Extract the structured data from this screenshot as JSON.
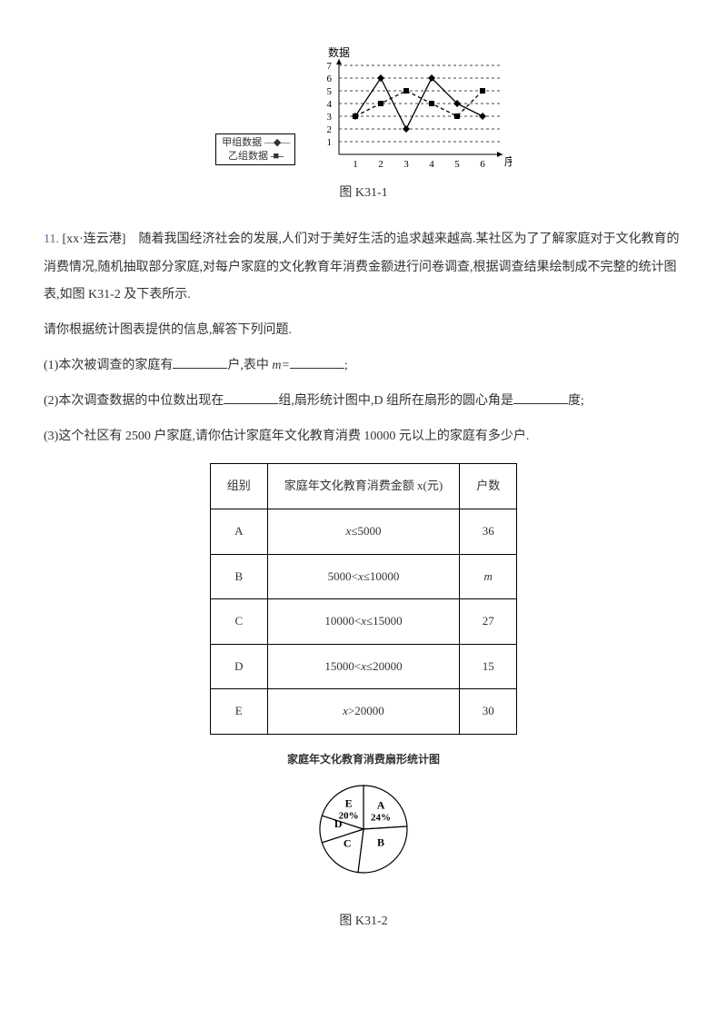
{
  "lineChart": {
    "yLabel": "数据",
    "xLabel": "序号",
    "yTicks": [
      "7",
      "6",
      "5",
      "4",
      "3",
      "2",
      "1"
    ],
    "xTicks": [
      "1",
      "2",
      "3",
      "4",
      "5",
      "6"
    ],
    "legend": {
      "seriesA": "甲组数据",
      "seriesB": "乙组数据"
    },
    "caption": "图 K31-1",
    "seriesA_values": [
      3,
      6,
      2,
      6,
      4,
      3
    ],
    "seriesB_values": [
      3,
      4,
      5,
      4,
      3,
      5
    ],
    "grid_color": "#444",
    "seriesA_marker": "diamond",
    "seriesB_marker": "square"
  },
  "question": {
    "num": "11.",
    "source": "[xx·连云港]",
    "stem": "随着我国经济社会的发展,人们对于美好生活的追求越来越高.某社区为了了解家庭对于文化教育的消费情况,随机抽取部分家庭,对每户家庭的文化教育年消费金额进行问卷调查,根据调查结果绘制成不完整的统计图表,如图 K31-2 及下表所示.",
    "prompt": "请你根据统计图表提供的信息,解答下列问题.",
    "part1_a": "(1)本次被调查的家庭有",
    "part1_b": "户,表中 ",
    "part1_c": "m=",
    "part1_d": "; ",
    "part2_a": "(2)本次调查数据的中位数出现在",
    "part2_b": "组,扇形统计图中,D 组所在扇形的圆心角是",
    "part2_c": "度;",
    "part3": "(3)这个社区有 2500 户家庭,请你估计家庭年文化教育消费 10000 元以上的家庭有多少户."
  },
  "table": {
    "headers": [
      "组别",
      "家庭年文化教育消费金额 x(元)",
      "户数"
    ],
    "rows": [
      [
        "A",
        "x≤5000",
        "36"
      ],
      [
        "B",
        "5000<x≤10000",
        "m"
      ],
      [
        "C",
        "10000<x≤15000",
        "27"
      ],
      [
        "D",
        "15000<x≤20000",
        "15"
      ],
      [
        "E",
        "x>20000",
        "30"
      ]
    ]
  },
  "pie": {
    "title": "家庭年文化教育消费扇形统计图",
    "slices": {
      "A": {
        "label": "A",
        "pct": "24%",
        "angle_start": -90,
        "angle_end": -3.6
      },
      "B": {
        "label": "B",
        "pct": "",
        "angle_start": -3.6,
        "angle_end": 97.2
      },
      "C": {
        "label": "C",
        "pct": "",
        "angle_start": 97.2,
        "angle_end": 162
      },
      "D": {
        "label": "D",
        "pct": "",
        "angle_start": 162,
        "angle_end": 198
      },
      "E": {
        "label": "E",
        "pct": "20%",
        "angle_start": 198,
        "angle_end": 270
      }
    },
    "caption": "图 K31-2"
  }
}
